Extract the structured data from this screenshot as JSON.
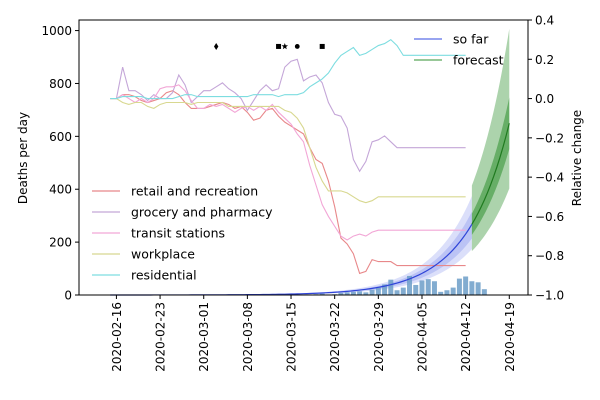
{
  "chart_data": {
    "type": "line",
    "xlabel": "",
    "ylabel_left": "Deaths per day",
    "ylabel_right": "Relative change",
    "x_range": [
      "2020-02-10",
      "2020-04-22"
    ],
    "ylim_left": [
      0,
      1040
    ],
    "ylim_right": [
      -1.0,
      0.4
    ],
    "yticks_left": [
      0,
      200,
      400,
      600,
      800,
      1000
    ],
    "yticks_right": [
      -1.0,
      -0.8,
      -0.6,
      -0.4,
      -0.2,
      0.0,
      0.2,
      0.4
    ],
    "yticks_right_labels": [
      "−1.0",
      "−0.8",
      "−0.6",
      "−0.4",
      "−0.2",
      "0.0",
      "0.2",
      "0.4"
    ],
    "xticks": [
      "2020-02-16",
      "2020-02-23",
      "2020-03-01",
      "2020-03-08",
      "2020-03-15",
      "2020-03-22",
      "2020-03-29",
      "2020-04-05",
      "2020-04-12",
      "2020-04-19"
    ],
    "grid": false,
    "legend_mobility": {
      "placement": "lower-left",
      "entries": [
        {
          "name": "retail and recreation",
          "color": "#e8888a"
        },
        {
          "name": "grocery and pharmacy",
          "color": "#c4a6d8"
        },
        {
          "name": "transit stations",
          "color": "#f2a6d6"
        },
        {
          "name": "workplace",
          "color": "#d8d890"
        },
        {
          "name": "residential",
          "color": "#7ddde0"
        }
      ]
    },
    "legend_forecast": {
      "placement": "top-right",
      "entries": [
        {
          "name": "so far",
          "color": "#5b6ee8"
        },
        {
          "name": "forecast",
          "color": "#5aa85a"
        }
      ]
    },
    "mobility_start": "2020-02-15",
    "mobility_series": [
      {
        "name": "retail and recreation",
        "color": "#e8888a",
        "axis": "right",
        "values": [
          0.0,
          0.0,
          0.02,
          0.02,
          0.01,
          -0.01,
          -0.02,
          -0.01,
          0.0,
          0.03,
          0.04,
          0.02,
          -0.02,
          -0.05,
          -0.05,
          -0.05,
          -0.04,
          -0.03,
          -0.02,
          -0.03,
          -0.05,
          -0.04,
          -0.07,
          -0.11,
          -0.1,
          -0.06,
          -0.05,
          -0.09,
          -0.12,
          -0.14,
          -0.16,
          -0.18,
          -0.25,
          -0.31,
          -0.33,
          -0.42,
          -0.55,
          -0.71,
          -0.74,
          -0.79,
          -0.89,
          -0.88,
          -0.82,
          -0.83,
          -0.83,
          -0.83,
          -0.85,
          -0.85,
          -0.85,
          -0.85,
          -0.85,
          -0.85,
          -0.85,
          -0.85,
          -0.85,
          -0.85,
          -0.85,
          -0.85
        ]
      },
      {
        "name": "grocery and pharmacy",
        "color": "#c4a6d8",
        "axis": "right",
        "values": [
          0.0,
          0.0,
          0.16,
          0.04,
          0.04,
          0.02,
          -0.01,
          0.02,
          0.0,
          0.0,
          0.03,
          0.12,
          0.07,
          -0.02,
          0.01,
          0.04,
          0.04,
          0.06,
          0.08,
          0.05,
          0.03,
          0.0,
          -0.06,
          -0.01,
          0.04,
          0.07,
          0.04,
          0.05,
          0.16,
          0.19,
          0.2,
          0.09,
          0.11,
          0.12,
          0.08,
          -0.02,
          -0.08,
          -0.09,
          -0.15,
          -0.31,
          -0.37,
          -0.32,
          -0.22,
          -0.21,
          -0.19,
          -0.22,
          -0.25,
          -0.25,
          -0.25,
          -0.25,
          -0.25,
          -0.25,
          -0.25,
          -0.25,
          -0.25,
          -0.25,
          -0.25,
          -0.25
        ]
      },
      {
        "name": "transit stations",
        "color": "#f2a6d6",
        "axis": "right",
        "values": [
          0.0,
          0.0,
          0.02,
          0.0,
          -0.02,
          0.0,
          -0.02,
          0.0,
          0.05,
          0.06,
          0.06,
          0.07,
          0.04,
          -0.01,
          -0.05,
          -0.05,
          -0.03,
          -0.04,
          -0.03,
          -0.05,
          -0.07,
          -0.05,
          -0.04,
          -0.06,
          -0.04,
          -0.06,
          -0.03,
          -0.07,
          -0.1,
          -0.13,
          -0.18,
          -0.22,
          -0.34,
          -0.44,
          -0.54,
          -0.6,
          -0.65,
          -0.7,
          -0.72,
          -0.7,
          -0.69,
          -0.7,
          -0.68,
          -0.67,
          -0.67,
          -0.67,
          -0.67,
          -0.67,
          -0.67,
          -0.67,
          -0.67,
          -0.67,
          -0.67,
          -0.67,
          -0.67,
          -0.67,
          -0.67,
          -0.67
        ]
      },
      {
        "name": "workplace",
        "color": "#d8d890",
        "axis": "right",
        "values": [
          0.0,
          0.0,
          -0.02,
          -0.03,
          -0.02,
          -0.02,
          -0.04,
          -0.05,
          -0.03,
          -0.02,
          -0.02,
          -0.02,
          -0.02,
          -0.03,
          -0.02,
          -0.02,
          -0.02,
          -0.02,
          -0.02,
          -0.04,
          -0.04,
          -0.04,
          -0.04,
          -0.04,
          -0.04,
          -0.04,
          -0.04,
          -0.04,
          -0.06,
          -0.07,
          -0.1,
          -0.15,
          -0.25,
          -0.35,
          -0.42,
          -0.47,
          -0.47,
          -0.47,
          -0.48,
          -0.5,
          -0.52,
          -0.53,
          -0.52,
          -0.5,
          -0.5,
          -0.5,
          -0.5,
          -0.5,
          -0.5,
          -0.5,
          -0.5,
          -0.5,
          -0.5,
          -0.5,
          -0.5,
          -0.5,
          -0.5,
          -0.5
        ]
      },
      {
        "name": "residential",
        "color": "#7ddde0",
        "axis": "right",
        "values": [
          0.0,
          0.0,
          0.01,
          0.01,
          0.01,
          0.01,
          0.0,
          0.0,
          0.0,
          0.0,
          0.0,
          0.01,
          0.02,
          0.02,
          0.01,
          0.01,
          0.01,
          0.01,
          0.01,
          0.01,
          0.01,
          0.01,
          0.01,
          0.02,
          0.02,
          0.02,
          0.02,
          0.01,
          0.02,
          0.02,
          0.02,
          0.03,
          0.06,
          0.08,
          0.1,
          0.13,
          0.18,
          0.22,
          0.24,
          0.26,
          0.22,
          0.23,
          0.25,
          0.27,
          0.28,
          0.3,
          0.27,
          0.22,
          0.22,
          0.22,
          0.22,
          0.22,
          0.22,
          0.22,
          0.22,
          0.22,
          0.22,
          0.22
        ]
      }
    ],
    "deaths_bars": {
      "start": "2020-02-29",
      "color": "#6c9ec8",
      "values": [
        0,
        0,
        0,
        0,
        0,
        0,
        0,
        0,
        0,
        0,
        0,
        0,
        0,
        0,
        0,
        0,
        0,
        0,
        2,
        3,
        5,
        2,
        3,
        8,
        10,
        12,
        14,
        10,
        20,
        28,
        40,
        58,
        18,
        28,
        72,
        38,
        55,
        60,
        52,
        12,
        18,
        28,
        62,
        70,
        52,
        48,
        22
      ]
    },
    "so_far_start": "2020-02-15",
    "so_far_end": "2020-04-13",
    "forecast_end": "2020-04-19",
    "growth_model": {
      "base_date": "2020-02-15",
      "coefficient": 0.05,
      "rate": 0.148
    },
    "markers": [
      {
        "date": "2020-03-03",
        "symbol": "♦"
      },
      {
        "date": "2020-03-13",
        "symbol": "■"
      },
      {
        "date": "2020-03-14",
        "symbol": "★"
      },
      {
        "date": "2020-03-16",
        "symbol": "●"
      },
      {
        "date": "2020-03-20",
        "symbol": "■"
      }
    ],
    "marker_value": 940
  }
}
